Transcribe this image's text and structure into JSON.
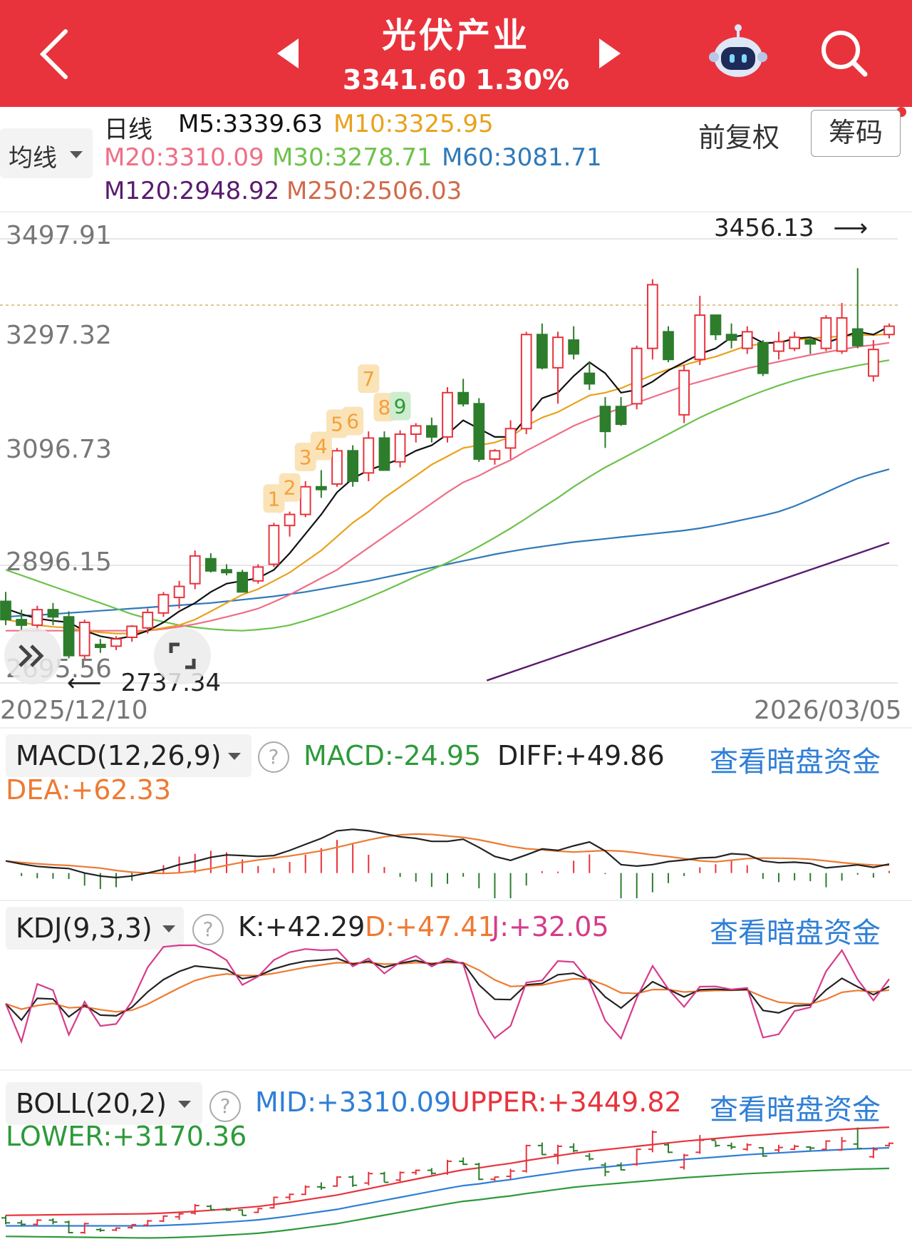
{
  "header": {
    "title": "光伏产业",
    "price": "3341.60",
    "change": "1.30%"
  },
  "ma_row": {
    "period": "日线",
    "selector": "均线",
    "m5": "M5:3339.63",
    "m10": "M10:3325.95",
    "m20": "M20:3310.09",
    "m30": "M30:3278.71",
    "m60": "M60:3081.71",
    "m120": "M120:2948.92",
    "m250": "M250:2506.03",
    "adjust": "前复权",
    "chips": "筹码"
  },
  "colors": {
    "up": "#e8333d",
    "down": "#2d7d2d",
    "m5": "#111111",
    "m10": "#e8a21b",
    "m20": "#ef6e86",
    "m30": "#6cc24a",
    "m60": "#2f79b9",
    "m120": "#5a1a6e",
    "m250": "#d06a4a"
  },
  "chart": {
    "y_labels": [
      "3497.91",
      "3297.32",
      "3096.73",
      "2896.15",
      "2695.56"
    ],
    "high_marker": "3456.13",
    "low_marker": "2737.34",
    "date_start": "2025/12/10",
    "date_end": "2026/03/05",
    "td_sequence": [
      "1",
      "2",
      "3",
      "4",
      "5",
      "6",
      "7",
      "8",
      "9"
    ]
  },
  "macd": {
    "name": "MACD(12,26,9)",
    "macd": "MACD:-24.95",
    "diff": "DIFF:+49.86",
    "dea": "DEA:+62.33",
    "link": "查看暗盘资金"
  },
  "kdj": {
    "name": "KDJ(9,3,3)",
    "k": "K:+42.29",
    "d": "D:+47.41",
    "j": "J:+32.05",
    "link": "查看暗盘资金"
  },
  "boll": {
    "name": "BOLL(20,2)",
    "mid": "MID:+3310.09",
    "upper": "UPPER:+3449.82",
    "lower": "LOWER:+3170.36",
    "link": "查看暗盘资金"
  },
  "chart_data": {
    "type": "candlestick",
    "ohlc": [
      [
        2843,
        2860,
        2800,
        2810
      ],
      [
        2810,
        2828,
        2790,
        2800
      ],
      [
        2800,
        2835,
        2790,
        2828
      ],
      [
        2828,
        2840,
        2800,
        2815
      ],
      [
        2815,
        2825,
        2740,
        2745
      ],
      [
        2745,
        2810,
        2737,
        2805
      ],
      [
        2765,
        2775,
        2750,
        2760
      ],
      [
        2762,
        2780,
        2755,
        2775
      ],
      [
        2778,
        2800,
        2770,
        2798
      ],
      [
        2795,
        2830,
        2785,
        2823
      ],
      [
        2822,
        2860,
        2815,
        2855
      ],
      [
        2850,
        2880,
        2830,
        2870
      ],
      [
        2875,
        2935,
        2865,
        2925
      ],
      [
        2920,
        2930,
        2895,
        2898
      ],
      [
        2900,
        2910,
        2890,
        2895
      ],
      [
        2895,
        2900,
        2860,
        2860
      ],
      [
        2880,
        2910,
        2875,
        2905
      ],
      [
        2910,
        2985,
        2905,
        2980
      ],
      [
        2980,
        3005,
        2960,
        3000
      ],
      [
        3000,
        3060,
        2995,
        3050
      ],
      [
        3050,
        3080,
        3030,
        3045
      ],
      [
        3055,
        3120,
        3050,
        3115
      ],
      [
        3115,
        3125,
        3050,
        3060
      ],
      [
        3075,
        3150,
        3060,
        3138
      ],
      [
        3138,
        3150,
        3080,
        3080
      ],
      [
        3095,
        3152,
        3085,
        3145
      ],
      [
        3145,
        3165,
        3130,
        3160
      ],
      [
        3160,
        3175,
        3130,
        3140
      ],
      [
        3140,
        3230,
        3130,
        3220
      ],
      [
        3220,
        3245,
        3195,
        3200
      ],
      [
        3200,
        3210,
        3095,
        3100
      ],
      [
        3100,
        3118,
        3090,
        3115
      ],
      [
        3120,
        3170,
        3100,
        3155
      ],
      [
        3155,
        3330,
        3145,
        3325
      ],
      [
        3325,
        3345,
        3262,
        3265
      ],
      [
        3265,
        3330,
        3200,
        3320
      ],
      [
        3315,
        3340,
        3280,
        3290
      ],
      [
        3255,
        3275,
        3225,
        3236
      ],
      [
        3195,
        3212,
        3120,
        3150
      ],
      [
        3195,
        3212,
        3160,
        3163
      ],
      [
        3200,
        3305,
        3190,
        3300
      ],
      [
        3300,
        3425,
        3280,
        3415
      ],
      [
        3330,
        3340,
        3275,
        3280
      ],
      [
        3180,
        3270,
        3165,
        3260
      ],
      [
        3280,
        3395,
        3270,
        3360
      ],
      [
        3360,
        3355,
        3315,
        3325
      ],
      [
        3325,
        3345,
        3300,
        3315
      ],
      [
        3300,
        3340,
        3290,
        3330
      ],
      [
        3310,
        3315,
        3250,
        3255
      ],
      [
        3295,
        3330,
        3280,
        3312
      ],
      [
        3300,
        3330,
        3295,
        3320
      ],
      [
        3315,
        3320,
        3290,
        3308
      ],
      [
        3300,
        3360,
        3295,
        3355
      ],
      [
        3295,
        3382,
        3290,
        3355
      ],
      [
        3335,
        3445,
        3300,
        3305
      ],
      [
        3250,
        3315,
        3240,
        3298
      ],
      [
        3325,
        3345,
        3318,
        3340
      ]
    ],
    "ma5": [
      2830,
      2820,
      2812,
      2808,
      2805,
      2790,
      2780,
      2775,
      2780,
      2790,
      2805,
      2825,
      2840,
      2860,
      2875,
      2880,
      2885,
      2900,
      2930,
      2965,
      3000,
      3040,
      3065,
      3080,
      3090,
      3100,
      3115,
      3125,
      3145,
      3170,
      3155,
      3140,
      3140,
      3175,
      3210,
      3220,
      3250,
      3275,
      3255,
      3220,
      3225,
      3240,
      3260,
      3275,
      3290,
      3300,
      3320,
      3325,
      3310,
      3310,
      3318,
      3320,
      3310,
      3320,
      3330,
      3325,
      3339.63
    ],
    "ma10": [
      2810,
      2805,
      2800,
      2797,
      2795,
      2790,
      2787,
      2785,
      2785,
      2790,
      2795,
      2800,
      2810,
      2825,
      2840,
      2855,
      2865,
      2880,
      2895,
      2915,
      2935,
      2960,
      2985,
      3005,
      3030,
      3050,
      3070,
      3090,
      3105,
      3120,
      3125,
      3130,
      3140,
      3160,
      3175,
      3185,
      3200,
      3215,
      3220,
      3228,
      3240,
      3252,
      3262,
      3270,
      3278,
      3285,
      3295,
      3305,
      3308,
      3312,
      3315,
      3318,
      3320,
      3322,
      3324,
      3324,
      3325.95
    ],
    "ma20": [
      2790,
      2790,
      2790,
      2790,
      2790,
      2790,
      2790,
      2790,
      2790,
      2790,
      2793,
      2797,
      2802,
      2808,
      2815,
      2822,
      2830,
      2842,
      2855,
      2870,
      2885,
      2900,
      2920,
      2940,
      2960,
      2980,
      3000,
      3020,
      3040,
      3058,
      3070,
      3085,
      3098,
      3115,
      3130,
      3145,
      3160,
      3172,
      3182,
      3192,
      3202,
      3212,
      3222,
      3232,
      3240,
      3248,
      3256,
      3264,
      3270,
      3276,
      3282,
      3288,
      3293,
      3298,
      3303,
      3306,
      3310.09
    ],
    "ma30": [
      2900,
      2890,
      2880,
      2870,
      2860,
      2850,
      2840,
      2830,
      2820,
      2812,
      2806,
      2800,
      2796,
      2793,
      2791,
      2790,
      2792,
      2795,
      2800,
      2808,
      2817,
      2827,
      2838,
      2850,
      2862,
      2875,
      2888,
      2900,
      2913,
      2927,
      2942,
      2958,
      2975,
      2993,
      3012,
      3030,
      3050,
      3068,
      3085,
      3100,
      3115,
      3130,
      3145,
      3160,
      3175,
      3188,
      3200,
      3212,
      3223,
      3233,
      3242,
      3250,
      3257,
      3263,
      3269,
      3274,
      3278.71
    ],
    "ma60": [
      2815,
      2817,
      2818,
      2820,
      2822,
      2824,
      2826,
      2828,
      2830,
      2832,
      2834,
      2836,
      2838,
      2840,
      2843,
      2846,
      2849,
      2852,
      2856,
      2860,
      2865,
      2870,
      2875,
      2880,
      2886,
      2892,
      2898,
      2904,
      2910,
      2916,
      2922,
      2928,
      2933,
      2938,
      2942,
      2946,
      2950,
      2953,
      2956,
      2959,
      2962,
      2965,
      2968,
      2971,
      2975,
      2980,
      2986,
      2992,
      2998,
      3005,
      3015,
      3027,
      3040,
      3053,
      3065,
      3074,
      3081.71
    ],
    "ma120_range": [
      2695.56,
      2948.92
    ],
    "ma250": "2506.03",
    "y_range": [
      2695.56,
      3497.91
    ],
    "x_range": [
      "2025/12/10",
      "2026/03/05"
    ]
  }
}
